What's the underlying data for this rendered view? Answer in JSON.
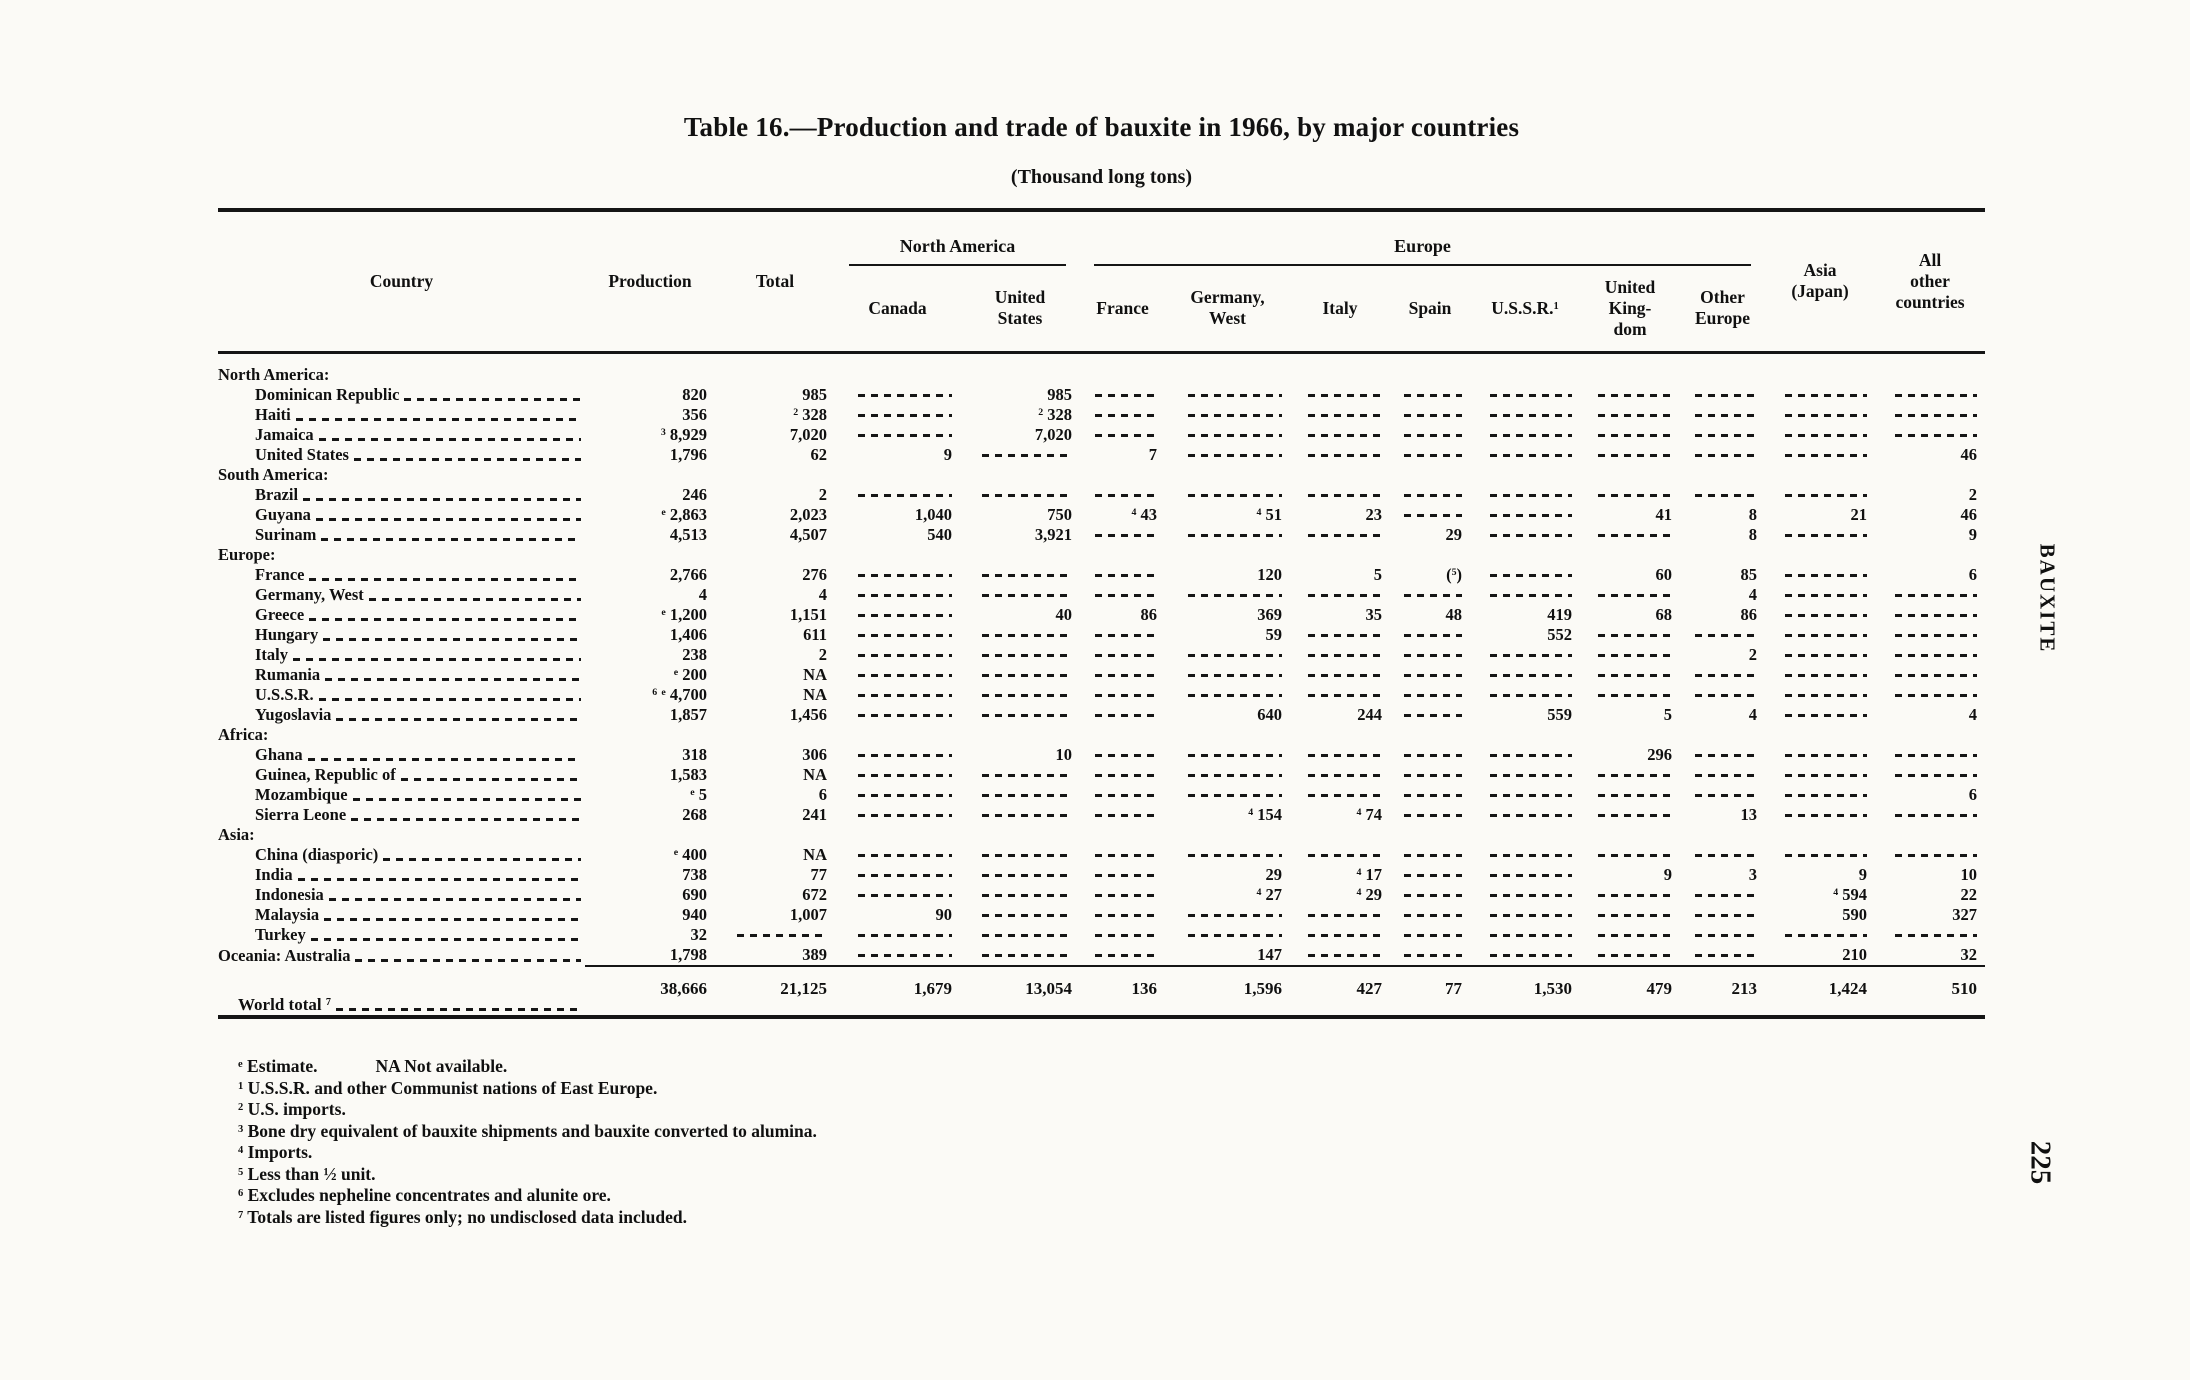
{
  "page": {
    "side_label": "BAUXITE",
    "number": "225"
  },
  "table": {
    "title": "Table 16.—Production and trade of bauxite in 1966, by major countries",
    "subtitle": "(Thousand long tons)",
    "header": {
      "country": "Country",
      "production": "Production",
      "total": "Total",
      "group_north_america": "North America",
      "group_europe": "Europe",
      "canada": "Canada",
      "united_states": "United\nStates",
      "france": "France",
      "germany_west": "Germany,\nWest",
      "italy": "Italy",
      "spain": "Spain",
      "ussr": "U.S.S.R.^1",
      "united_kingdom": "United\nKing-\ndom",
      "other_europe": "Other\nEurope",
      "asia_japan": "Asia\n(Japan)",
      "all_other": "All\nother\ncountries"
    },
    "rows": [
      {
        "label": "North America:",
        "type": "section"
      },
      {
        "label": "Dominican Republic",
        "type": "data",
        "values": [
          "820",
          "985",
          null,
          "985",
          null,
          null,
          null,
          null,
          null,
          null,
          null,
          null,
          null
        ]
      },
      {
        "label": "Haiti",
        "type": "data",
        "values": [
          "356",
          "^2 328",
          null,
          "^2 328",
          null,
          null,
          null,
          null,
          null,
          null,
          null,
          null,
          null
        ]
      },
      {
        "label": "Jamaica",
        "type": "data",
        "values": [
          "^3 8,929",
          "7,020",
          null,
          "7,020",
          null,
          null,
          null,
          null,
          null,
          null,
          null,
          null,
          null
        ]
      },
      {
        "label": "United States",
        "type": "data",
        "values": [
          "1,796",
          "62",
          "9",
          null,
          "7",
          null,
          null,
          null,
          null,
          null,
          null,
          null,
          "46"
        ]
      },
      {
        "label": "South America:",
        "type": "section"
      },
      {
        "label": "Brazil",
        "type": "data",
        "values": [
          "246",
          "2",
          null,
          null,
          null,
          null,
          null,
          null,
          null,
          null,
          null,
          null,
          "2"
        ]
      },
      {
        "label": "Guyana",
        "type": "data",
        "values": [
          "^e 2,863",
          "2,023",
          "1,040",
          "750",
          "^4 43",
          "^4 51",
          "23",
          null,
          null,
          "41",
          "8",
          "21",
          "46"
        ]
      },
      {
        "label": "Surinam",
        "type": "data",
        "values": [
          "4,513",
          "4,507",
          "540",
          "3,921",
          null,
          null,
          null,
          "29",
          null,
          null,
          "8",
          null,
          "9"
        ]
      },
      {
        "label": "Europe:",
        "type": "section"
      },
      {
        "label": "France",
        "type": "data",
        "values": [
          "2,766",
          "276",
          null,
          null,
          null,
          "120",
          "5",
          "(^5)",
          null,
          "60",
          "85",
          null,
          "6"
        ]
      },
      {
        "label": "Germany, West",
        "type": "data",
        "values": [
          "4",
          "4",
          null,
          null,
          null,
          null,
          null,
          null,
          null,
          null,
          "4",
          null,
          null
        ]
      },
      {
        "label": "Greece",
        "type": "data",
        "values": [
          "^e 1,200",
          "1,151",
          null,
          "40",
          "86",
          "369",
          "35",
          "48",
          "419",
          "68",
          "86",
          null,
          null
        ]
      },
      {
        "label": "Hungary",
        "type": "data",
        "values": [
          "1,406",
          "611",
          null,
          null,
          null,
          "59",
          null,
          null,
          "552",
          null,
          null,
          null,
          null
        ]
      },
      {
        "label": "Italy",
        "type": "data",
        "values": [
          "238",
          "2",
          null,
          null,
          null,
          null,
          null,
          null,
          null,
          null,
          "2",
          null,
          null
        ]
      },
      {
        "label": "Rumania",
        "type": "data",
        "values": [
          "^e 200",
          "NA",
          null,
          null,
          null,
          null,
          null,
          null,
          null,
          null,
          null,
          null,
          null
        ]
      },
      {
        "label": "U.S.S.R.",
        "type": "data",
        "values": [
          "^6 ^e 4,700",
          "NA",
          null,
          null,
          null,
          null,
          null,
          null,
          null,
          null,
          null,
          null,
          null
        ]
      },
      {
        "label": "Yugoslavia",
        "type": "data",
        "values": [
          "1,857",
          "1,456",
          null,
          null,
          null,
          "640",
          "244",
          null,
          "559",
          "5",
          "4",
          null,
          "4"
        ]
      },
      {
        "label": "Africa:",
        "type": "section"
      },
      {
        "label": "Ghana",
        "type": "data",
        "values": [
          "318",
          "306",
          null,
          "10",
          null,
          null,
          null,
          null,
          null,
          "296",
          null,
          null,
          null
        ]
      },
      {
        "label": "Guinea, Republic of",
        "type": "data",
        "values": [
          "1,583",
          "NA",
          null,
          null,
          null,
          null,
          null,
          null,
          null,
          null,
          null,
          null,
          null
        ]
      },
      {
        "label": "Mozambique",
        "type": "data",
        "values": [
          "^e 5",
          "6",
          null,
          null,
          null,
          null,
          null,
          null,
          null,
          null,
          null,
          null,
          "6"
        ]
      },
      {
        "label": "Sierra Leone",
        "type": "data",
        "values": [
          "268",
          "241",
          null,
          null,
          null,
          "^4 154",
          "^4 74",
          null,
          null,
          null,
          "13",
          null,
          null
        ]
      },
      {
        "label": "Asia:",
        "type": "section"
      },
      {
        "label": "China (diasporic)",
        "type": "data",
        "values": [
          "^e 400",
          "NA",
          null,
          null,
          null,
          null,
          null,
          null,
          null,
          null,
          null,
          null,
          null
        ]
      },
      {
        "label": "India",
        "type": "data",
        "values": [
          "738",
          "77",
          null,
          null,
          null,
          "29",
          "^4 17",
          null,
          null,
          "9",
          "3",
          "9",
          "10"
        ]
      },
      {
        "label": "Indonesia",
        "type": "data",
        "values": [
          "690",
          "672",
          null,
          null,
          null,
          "^4 27",
          "^4 29",
          null,
          null,
          null,
          null,
          "^4 594",
          "22"
        ]
      },
      {
        "label": "Malaysia",
        "type": "data",
        "values": [
          "940",
          "1,007",
          "90",
          null,
          null,
          null,
          null,
          null,
          null,
          null,
          null,
          "590",
          "327"
        ]
      },
      {
        "label": "Turkey",
        "type": "data",
        "values": [
          "32",
          null,
          null,
          null,
          null,
          null,
          null,
          null,
          null,
          null,
          null,
          null,
          null
        ]
      },
      {
        "label": "Oceania: Australia",
        "type": "data",
        "indent": false,
        "values": [
          "1,798",
          "389",
          null,
          null,
          null,
          "147",
          null,
          null,
          null,
          null,
          null,
          "210",
          "32"
        ]
      }
    ],
    "world_total": {
      "label": "World total ^7",
      "values": [
        "38,666",
        "21,125",
        "1,679",
        "13,054",
        "136",
        "1,596",
        "427",
        "77",
        "1,530",
        "479",
        "213",
        "1,424",
        "510"
      ]
    }
  },
  "footnotes": [
    [
      {
        "sup": "e",
        "text": "Estimate."
      },
      {
        "sup": "",
        "text": "NA Not available."
      }
    ],
    [
      {
        "sup": "1",
        "text": "U.S.S.R. and other Communist nations of East Europe."
      }
    ],
    [
      {
        "sup": "2",
        "text": "U.S. imports."
      }
    ],
    [
      {
        "sup": "3",
        "text": "Bone dry equivalent of bauxite shipments and bauxite converted to alumina."
      }
    ],
    [
      {
        "sup": "4",
        "text": "Imports."
      }
    ],
    [
      {
        "sup": "5",
        "text": "Less than ½ unit."
      }
    ],
    [
      {
        "sup": "6",
        "text": "Excludes nepheline concentrates and alunite ore."
      }
    ],
    [
      {
        "sup": "7",
        "text": "Totals are listed figures only; no undisclosed data included."
      }
    ]
  ]
}
